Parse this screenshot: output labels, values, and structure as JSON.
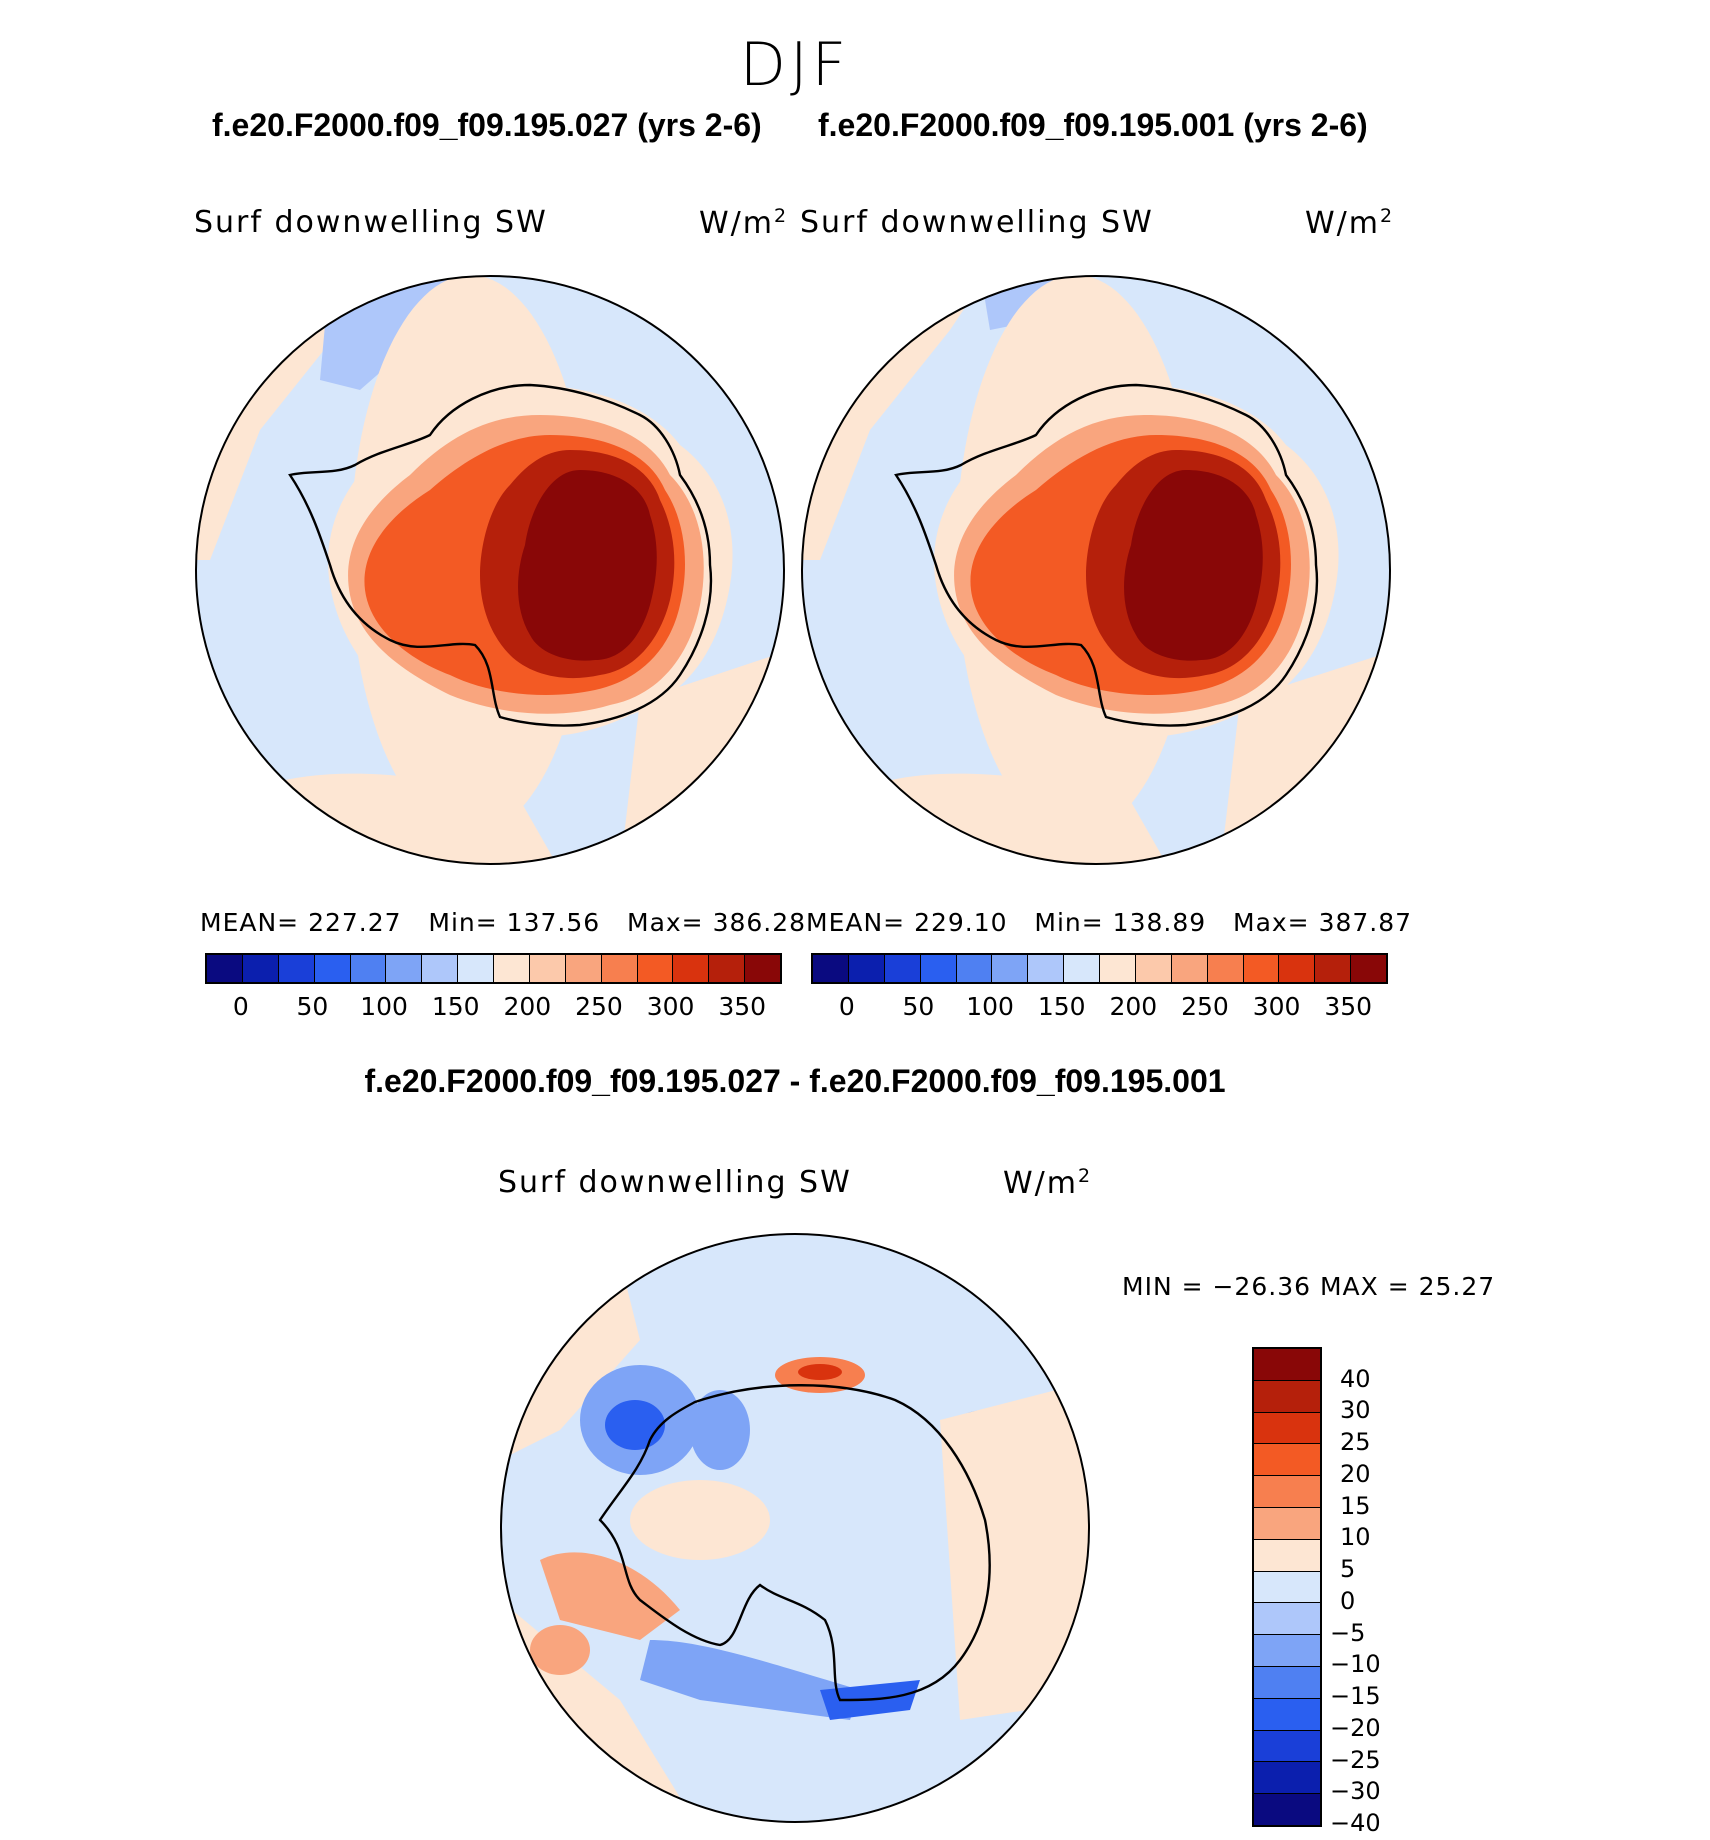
{
  "season": "DJF",
  "panels": [
    {
      "case_title": "f.e20.F2000.f09_f09.195.027 (yrs 2-6)",
      "variable": "Surf downwelling SW",
      "unit_base": "W/m",
      "unit_exp": "2",
      "mean_label": "MEAN=",
      "mean": "227.27",
      "min_label": "Min=",
      "min": "137.56",
      "max_label": "Max=",
      "max": "386.28"
    },
    {
      "case_title": "f.e20.F2000.f09_f09.195.001 (yrs 2-6)",
      "variable": "Surf downwelling SW",
      "unit_base": "W/m",
      "unit_exp": "2",
      "mean_label": "MEAN=",
      "mean": "229.10",
      "min_label": "Min=",
      "min": "138.89",
      "max_label": "Max=",
      "max": "387.87"
    }
  ],
  "diff": {
    "title": "f.e20.F2000.f09_f09.195.027 - f.e20.F2000.f09_f09.195.001",
    "variable": "Surf downwelling SW",
    "unit_base": "W/m",
    "unit_exp": "2",
    "minmax": "MIN = −26.36 MAX =   25.27"
  },
  "colorbar_main": {
    "colors": [
      "#0a0a80",
      "#0b1fae",
      "#1a3fd8",
      "#2a5ff0",
      "#4f80f2",
      "#7ea4f6",
      "#aec7fa",
      "#d7e7fb",
      "#fde6d3",
      "#fcc9ab",
      "#f9a57e",
      "#f77f4f",
      "#f35a24",
      "#d9330e",
      "#b5200b",
      "#890707"
    ],
    "ticks": [
      "0",
      "50",
      "100",
      "150",
      "200",
      "250",
      "300",
      "350"
    ]
  },
  "colorbar_diff": {
    "colors": [
      "#890707",
      "#b5200b",
      "#d9330e",
      "#f35a24",
      "#f77f4f",
      "#f9a57e",
      "#fde6d3",
      "#d7e7fb",
      "#aec7fa",
      "#7ea4f6",
      "#4f80f2",
      "#2a5ff0",
      "#1a3fd8",
      "#0b1fae",
      "#0a0a80"
    ],
    "ticks": [
      "40",
      "30",
      "25",
      "20",
      "15",
      "10",
      "5",
      "0",
      "−5",
      "−10",
      "−15",
      "−20",
      "−25",
      "−30",
      "−40"
    ]
  }
}
